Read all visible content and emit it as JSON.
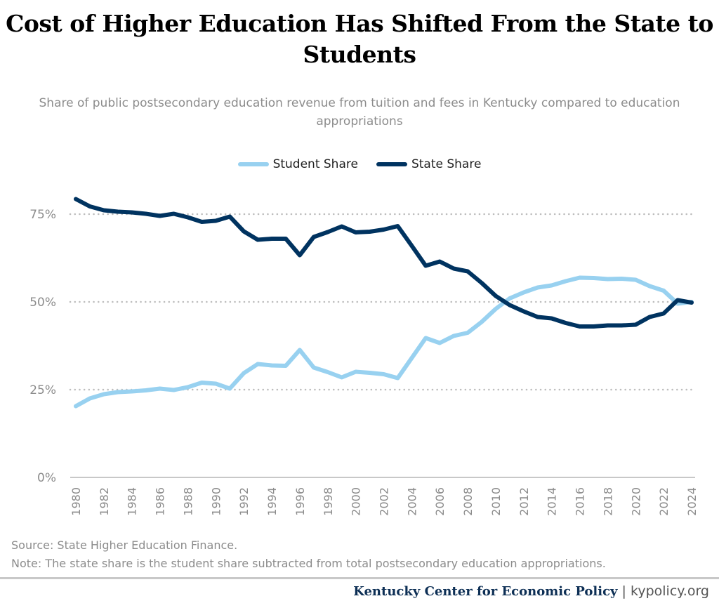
{
  "chart_data": {
    "type": "line",
    "title": "Cost of Higher Education Has Shifted From the State to Students",
    "subtitle": "Share of public postsecondary education revenue from tuition and fees in Kentucky compared to education appropriations",
    "xlabel": "",
    "ylabel": "",
    "x": [
      1980,
      1981,
      1982,
      1983,
      1984,
      1985,
      1986,
      1987,
      1988,
      1989,
      1990,
      1991,
      1992,
      1993,
      1994,
      1995,
      1996,
      1997,
      1998,
      1999,
      2000,
      2001,
      2002,
      2003,
      2004,
      2005,
      2006,
      2007,
      2008,
      2009,
      2010,
      2011,
      2012,
      2013,
      2014,
      2015,
      2016,
      2017,
      2018,
      2019,
      2020,
      2021,
      2022,
      2023,
      2024
    ],
    "x_tick_labels": [
      "1980",
      "1982",
      "1984",
      "1986",
      "1988",
      "1990",
      "1992",
      "1994",
      "1996",
      "1998",
      "2000",
      "2002",
      "2004",
      "2006",
      "2008",
      "2010",
      "2012",
      "2014",
      "2016",
      "2018",
      "2020",
      "2022",
      "2024"
    ],
    "y_tick_labels": [
      "0%",
      "25%",
      "50%",
      "75%"
    ],
    "y_ticks": [
      0,
      25,
      50,
      75
    ],
    "ylim": [
      0,
      80
    ],
    "grid": "horizontal dotted",
    "legend_position": "top",
    "series": [
      {
        "name": "Student Share",
        "color": "#98d1f0",
        "values": [
          20.3,
          22.5,
          23.7,
          24.3,
          24.5,
          24.8,
          25.3,
          24.9,
          25.7,
          27.0,
          26.7,
          25.3,
          29.7,
          32.3,
          31.9,
          31.8,
          36.3,
          31.3,
          30.0,
          28.5,
          30.1,
          29.8,
          29.4,
          28.3,
          34.0,
          39.7,
          38.3,
          40.3,
          41.2,
          44.3,
          48.0,
          51.0,
          52.7,
          54.1,
          54.7,
          55.9,
          56.9,
          56.8,
          56.5,
          56.6,
          56.3,
          54.5,
          53.2,
          49.5,
          50.0
        ]
      },
      {
        "name": "State Share",
        "color": "#003360",
        "values": [
          79.3,
          77.2,
          76.1,
          75.7,
          75.5,
          75.1,
          74.5,
          75.1,
          74.1,
          72.8,
          73.1,
          74.3,
          70.1,
          67.7,
          68.0,
          68.0,
          63.3,
          68.5,
          69.9,
          71.5,
          69.8,
          70.0,
          70.6,
          71.6,
          66.0,
          60.3,
          61.5,
          59.5,
          58.7,
          55.4,
          51.7,
          49.1,
          47.3,
          45.7,
          45.3,
          44.0,
          43.0,
          43.0,
          43.3,
          43.3,
          43.5,
          45.7,
          46.7,
          50.5,
          49.8
        ]
      }
    ]
  },
  "source": "Source: State Higher Education Finance.",
  "note": "Note: The state share is the student share subtracted from total postsecondary education appropriations.",
  "footer": {
    "org": "Kentucky Center for Economic Policy",
    "separator": "|",
    "url": "kypolicy.org"
  }
}
